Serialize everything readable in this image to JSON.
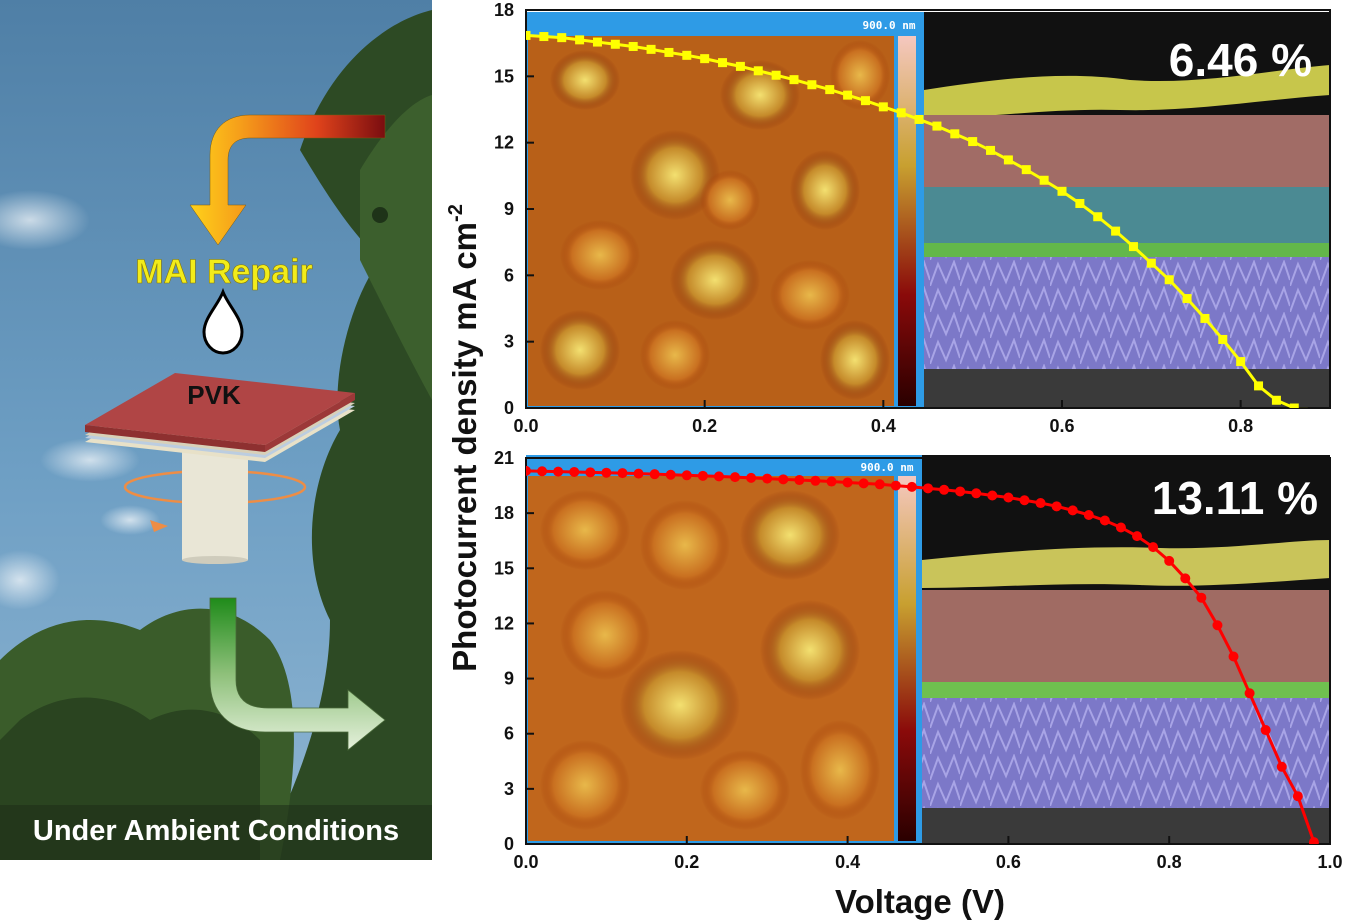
{
  "left_panel": {
    "repair_label": "MAI Repair",
    "film_label": "PVK",
    "conditions_label": "Under Ambient Conditions",
    "colors": {
      "repair_text": "#f2ec1a",
      "film_top": "#b04545",
      "sky": "#5d8fb8",
      "foliage": "#2c4a22"
    }
  },
  "shared_axes": {
    "ylabel": "Photocurrent density mA cm",
    "ylabel_superscript": "-2",
    "xlabel": "Voltage (V)"
  },
  "inset_labels": {
    "afm_scale_label": "900.0 nm"
  },
  "chart_data": [
    {
      "type": "line",
      "efficiency_label": "6.46 %",
      "xlim": [
        0,
        0.9
      ],
      "ylim": [
        0,
        18
      ],
      "x_ticks": [
        "0.0",
        "0.2",
        "0.4",
        "0.6",
        "0.8"
      ],
      "y_ticks": [
        "0",
        "3",
        "6",
        "9",
        "12",
        "15",
        "18"
      ],
      "grid": false,
      "color": "#ffff00",
      "marker": "square",
      "series": [
        {
          "x": [
            0.0,
            0.02,
            0.04,
            0.06,
            0.08,
            0.1,
            0.12,
            0.14,
            0.16,
            0.18,
            0.2,
            0.22,
            0.24,
            0.26,
            0.28,
            0.3,
            0.32,
            0.34,
            0.36,
            0.38,
            0.4,
            0.42,
            0.44,
            0.46,
            0.48,
            0.5,
            0.52,
            0.54,
            0.56,
            0.58,
            0.6,
            0.62,
            0.64,
            0.66,
            0.68,
            0.7,
            0.72,
            0.74,
            0.76,
            0.78,
            0.8,
            0.82,
            0.84,
            0.86,
            0.87
          ],
          "y": [
            16.85,
            16.8,
            16.75,
            16.65,
            16.55,
            16.45,
            16.35,
            16.22,
            16.08,
            15.95,
            15.8,
            15.62,
            15.45,
            15.25,
            15.05,
            14.85,
            14.62,
            14.4,
            14.15,
            13.9,
            13.62,
            13.35,
            13.05,
            12.75,
            12.4,
            12.05,
            11.65,
            11.22,
            10.78,
            10.3,
            9.8,
            9.25,
            8.65,
            8.0,
            7.3,
            6.55,
            5.8,
            4.95,
            4.05,
            3.1,
            2.1,
            1.0,
            0.35,
            0.0,
            -0.2
          ]
        }
      ]
    },
    {
      "type": "line",
      "efficiency_label": "13.11 %",
      "xlim": [
        0,
        1.0
      ],
      "ylim": [
        0,
        21
      ],
      "x_ticks": [
        "0.0",
        "0.2",
        "0.4",
        "0.6",
        "0.8",
        "1.0"
      ],
      "y_ticks": [
        "0",
        "3",
        "6",
        "9",
        "12",
        "15",
        "18",
        "21"
      ],
      "grid": false,
      "color": "#ff0000",
      "marker": "circle",
      "series": [
        {
          "x": [
            0.0,
            0.02,
            0.04,
            0.06,
            0.08,
            0.1,
            0.12,
            0.14,
            0.16,
            0.18,
            0.2,
            0.22,
            0.24,
            0.26,
            0.28,
            0.3,
            0.32,
            0.34,
            0.36,
            0.38,
            0.4,
            0.42,
            0.44,
            0.46,
            0.48,
            0.5,
            0.52,
            0.54,
            0.56,
            0.58,
            0.6,
            0.62,
            0.64,
            0.66,
            0.68,
            0.7,
            0.72,
            0.74,
            0.76,
            0.78,
            0.8,
            0.82,
            0.84,
            0.86,
            0.88,
            0.9,
            0.92,
            0.94,
            0.96,
            0.98
          ],
          "y": [
            20.3,
            20.28,
            20.26,
            20.24,
            20.22,
            20.2,
            20.18,
            20.15,
            20.12,
            20.09,
            20.06,
            20.03,
            20.0,
            19.96,
            19.92,
            19.88,
            19.84,
            19.8,
            19.76,
            19.72,
            19.67,
            19.62,
            19.57,
            19.5,
            19.43,
            19.35,
            19.27,
            19.18,
            19.08,
            18.96,
            18.85,
            18.7,
            18.55,
            18.37,
            18.15,
            17.9,
            17.6,
            17.22,
            16.75,
            16.15,
            15.4,
            14.45,
            13.4,
            11.9,
            10.2,
            8.2,
            6.2,
            4.2,
            2.6,
            0.1
          ]
        }
      ]
    }
  ]
}
